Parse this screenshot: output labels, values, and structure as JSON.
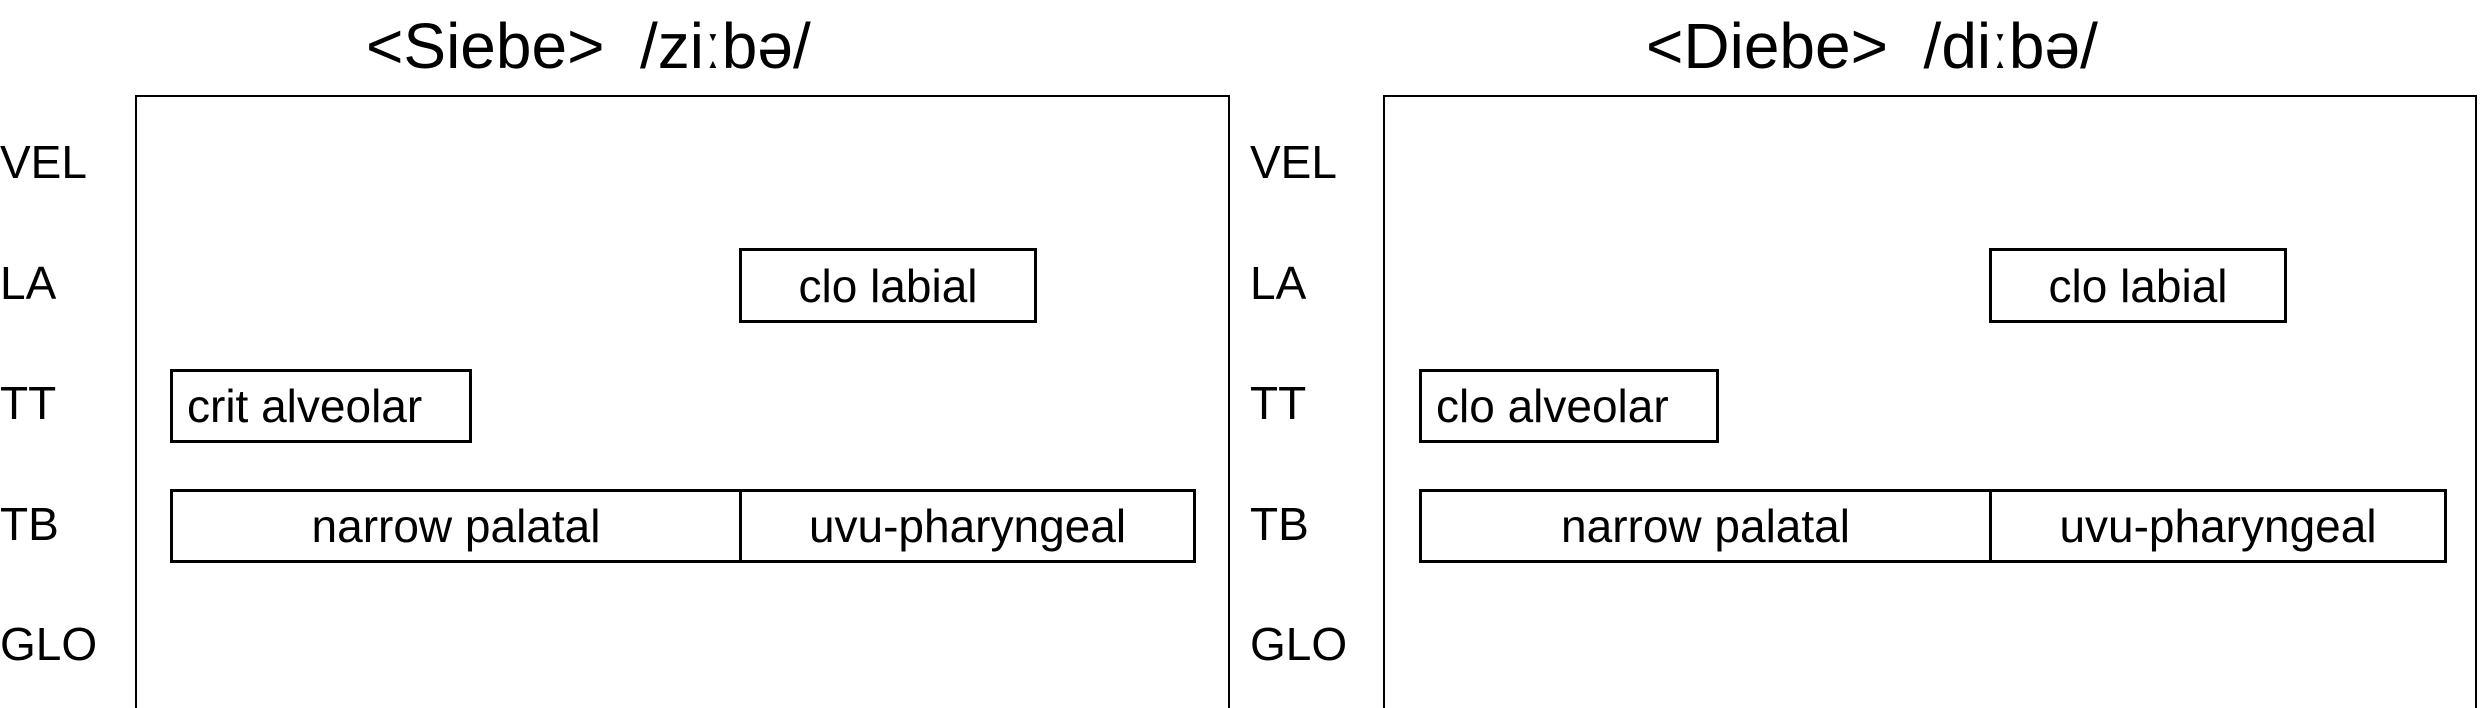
{
  "panels": [
    {
      "title": "<Siebe>  /ziːbə/",
      "tiers": [
        "VEL",
        "LA",
        "TT",
        "TB",
        "GLO"
      ],
      "gestures": {
        "la": "clo labial",
        "tt": "crit alveolar",
        "tb1": "narrow palatal",
        "tb2": "uvu-pharyngeal"
      }
    },
    {
      "title": "<Diebe>  /diːbə/",
      "tiers": [
        "VEL",
        "LA",
        "TT",
        "TB",
        "GLO"
      ],
      "gestures": {
        "la": "clo labial",
        "tt": "clo alveolar",
        "tb1": "narrow palatal",
        "tb2": "uvu-pharyngeal"
      }
    }
  ]
}
